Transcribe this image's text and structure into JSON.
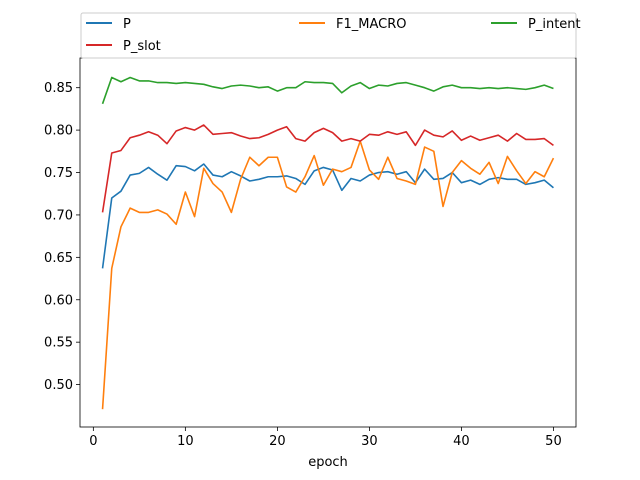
{
  "chart_data": {
    "type": "line",
    "xlabel": "epoch",
    "ylabel": "",
    "title": "",
    "xlim": [
      -1.45,
      52.45
    ],
    "ylim": [
      0.45,
      0.885
    ],
    "xticks": [
      0,
      10,
      20,
      30,
      40,
      50
    ],
    "yticks": [
      0.5,
      0.55,
      0.6,
      0.65,
      0.7,
      0.75,
      0.8,
      0.85
    ],
    "grid": false,
    "legend_position": "top, above plot",
    "x": [
      1,
      2,
      3,
      4,
      5,
      6,
      7,
      8,
      9,
      10,
      11,
      12,
      13,
      14,
      15,
      16,
      17,
      18,
      19,
      20,
      21,
      22,
      23,
      24,
      25,
      26,
      27,
      28,
      29,
      30,
      31,
      32,
      33,
      34,
      35,
      36,
      37,
      38,
      39,
      40,
      41,
      42,
      43,
      44,
      45,
      46,
      47,
      48,
      49,
      50
    ],
    "series": [
      {
        "name": "P",
        "color": "#1f77b4",
        "values": [
          0.637,
          0.72,
          0.728,
          0.747,
          0.749,
          0.756,
          0.748,
          0.741,
          0.758,
          0.757,
          0.752,
          0.76,
          0.747,
          0.745,
          0.751,
          0.746,
          0.74,
          0.742,
          0.745,
          0.745,
          0.746,
          0.743,
          0.736,
          0.752,
          0.756,
          0.753,
          0.729,
          0.743,
          0.74,
          0.747,
          0.75,
          0.751,
          0.748,
          0.751,
          0.738,
          0.754,
          0.742,
          0.743,
          0.75,
          0.738,
          0.741,
          0.736,
          0.742,
          0.744,
          0.742,
          0.742,
          0.736,
          0.738,
          0.741,
          0.732
        ]
      },
      {
        "name": "F1_MACRO",
        "color": "#ff7f0e",
        "values": [
          0.471,
          0.637,
          0.686,
          0.708,
          0.703,
          0.703,
          0.706,
          0.701,
          0.689,
          0.727,
          0.698,
          0.755,
          0.737,
          0.727,
          0.703,
          0.742,
          0.768,
          0.758,
          0.768,
          0.768,
          0.733,
          0.727,
          0.745,
          0.77,
          0.735,
          0.754,
          0.751,
          0.756,
          0.787,
          0.753,
          0.742,
          0.768,
          0.743,
          0.74,
          0.736,
          0.78,
          0.775,
          0.71,
          0.75,
          0.764,
          0.755,
          0.748,
          0.762,
          0.737,
          0.769,
          0.752,
          0.737,
          0.751,
          0.745,
          0.767
        ]
      },
      {
        "name": "P_intent",
        "color": "#2ca02c",
        "values": [
          0.831,
          0.862,
          0.857,
          0.862,
          0.858,
          0.858,
          0.856,
          0.856,
          0.855,
          0.856,
          0.855,
          0.854,
          0.851,
          0.849,
          0.852,
          0.853,
          0.852,
          0.85,
          0.851,
          0.846,
          0.85,
          0.85,
          0.857,
          0.856,
          0.856,
          0.855,
          0.844,
          0.852,
          0.856,
          0.849,
          0.853,
          0.852,
          0.855,
          0.856,
          0.853,
          0.85,
          0.846,
          0.851,
          0.853,
          0.85,
          0.85,
          0.849,
          0.85,
          0.849,
          0.85,
          0.849,
          0.848,
          0.85,
          0.853,
          0.849
        ]
      },
      {
        "name": "P_slot",
        "color": "#d62728",
        "values": [
          0.703,
          0.773,
          0.776,
          0.791,
          0.794,
          0.798,
          0.794,
          0.784,
          0.799,
          0.803,
          0.8,
          0.806,
          0.795,
          0.796,
          0.797,
          0.793,
          0.79,
          0.791,
          0.795,
          0.8,
          0.804,
          0.79,
          0.787,
          0.797,
          0.802,
          0.797,
          0.787,
          0.79,
          0.787,
          0.795,
          0.794,
          0.798,
          0.795,
          0.798,
          0.782,
          0.8,
          0.794,
          0.792,
          0.799,
          0.788,
          0.793,
          0.788,
          0.791,
          0.794,
          0.787,
          0.796,
          0.789,
          0.789,
          0.79,
          0.782
        ]
      }
    ]
  }
}
